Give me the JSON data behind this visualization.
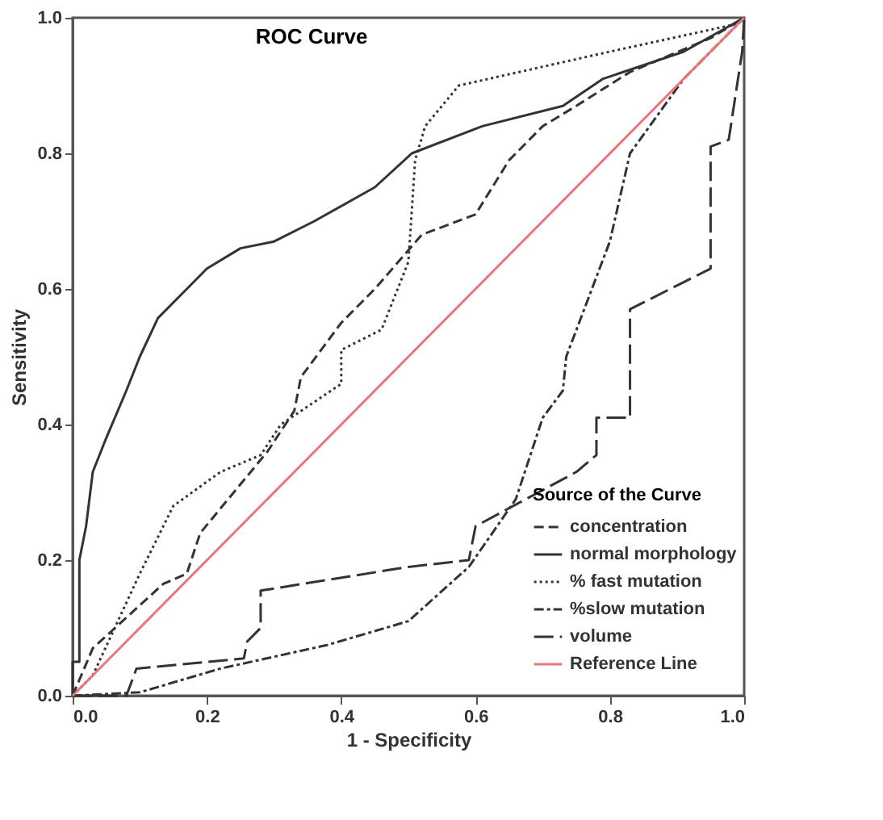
{
  "chart_data": {
    "type": "line",
    "title": "ROC Curve",
    "xlabel": "1 - Specificity",
    "ylabel": "Sensitivity",
    "legend_title": "Source of the Curve",
    "legend": "bottom right",
    "grid": false,
    "marker": "none",
    "xlim": [
      0,
      1
    ],
    "ylim": [
      0,
      1
    ],
    "xticks": [
      {
        "value": 0,
        "label": "0.0"
      },
      0.2,
      0.4,
      0.6,
      0.8,
      {
        "value": 1,
        "label": "1.0"
      }
    ],
    "yticks": [
      {
        "value": 0,
        "label": "0.0"
      },
      0.2,
      0.4,
      0.6,
      0.8,
      {
        "value": 1,
        "label": "1.0"
      }
    ],
    "series": [
      {
        "name": "concentration",
        "color": "#333333",
        "line_style": "dashed",
        "x": [
          0,
          0.03,
          0.135,
          0.17,
          0.19,
          0.29,
          0.33,
          0.34,
          0.4,
          0.45,
          0.52,
          0.6,
          0.65,
          0.7,
          0.75,
          0.83,
          0.95,
          1
        ],
        "values": [
          0,
          0.07,
          0.165,
          0.18,
          0.24,
          0.36,
          0.42,
          0.47,
          0.55,
          0.6,
          0.68,
          0.71,
          0.79,
          0.84,
          0.87,
          0.92,
          0.97,
          1
        ]
      },
      {
        "name": "normal morphology",
        "color": "#333333",
        "line_style": "solid",
        "x": [
          0,
          0,
          0.01,
          0.01,
          0.02,
          0.03,
          0.05,
          0.08,
          0.1,
          0.127,
          0.17,
          0.2,
          0.25,
          0.3,
          0.36,
          0.45,
          0.505,
          0.61,
          0.73,
          0.79,
          0.91,
          1
        ],
        "values": [
          0,
          0.05,
          0.05,
          0.2,
          0.25,
          0.33,
          0.38,
          0.45,
          0.5,
          0.557,
          0.6,
          0.63,
          0.66,
          0.67,
          0.7,
          0.75,
          0.8,
          0.84,
          0.87,
          0.91,
          0.95,
          1
        ]
      },
      {
        "name": "% fast mutation",
        "color": "#333333",
        "line_style": "dotted",
        "x": [
          0,
          0.03,
          0.1,
          0.15,
          0.22,
          0.28,
          0.31,
          0.4,
          0.4,
          0.46,
          0.5,
          0.51,
          0.525,
          0.575,
          0.8,
          0.985,
          1
        ],
        "values": [
          0,
          0.03,
          0.18,
          0.28,
          0.33,
          0.355,
          0.4,
          0.46,
          0.51,
          0.54,
          0.64,
          0.79,
          0.84,
          0.9,
          0.95,
          0.99,
          1
        ]
      },
      {
        "name": "%slow mutation",
        "color": "#333333",
        "line_style": "dashed",
        "x": [
          0,
          0.1,
          0.22,
          0.38,
          0.5,
          0.59,
          0.66,
          0.7,
          0.73,
          0.735,
          0.8,
          0.83,
          0.91,
          1
        ],
        "values": [
          0,
          0.005,
          0.04,
          0.075,
          0.11,
          0.19,
          0.29,
          0.41,
          0.45,
          0.5,
          0.67,
          0.8,
          0.91,
          1
        ]
      },
      {
        "name": "volume",
        "color": "#333333",
        "line_style": "dashed",
        "x": [
          0,
          0.08,
          0.095,
          0.255,
          0.26,
          0.28,
          0.28,
          0.5,
          0.59,
          0.6,
          0.75,
          0.78,
          0.78,
          0.83,
          0.83,
          0.95,
          0.95,
          0.977,
          0.997,
          1
        ],
        "values": [
          0,
          0,
          0.04,
          0.055,
          0.08,
          0.1,
          0.155,
          0.19,
          0.2,
          0.25,
          0.33,
          0.355,
          0.41,
          0.41,
          0.57,
          0.63,
          0.81,
          0.82,
          0.95,
          1
        ]
      },
      {
        "name": "Reference Line",
        "color": "#e8767a",
        "line_style": "solid",
        "x": [
          0,
          1
        ],
        "values": [
          0,
          1
        ]
      }
    ]
  }
}
